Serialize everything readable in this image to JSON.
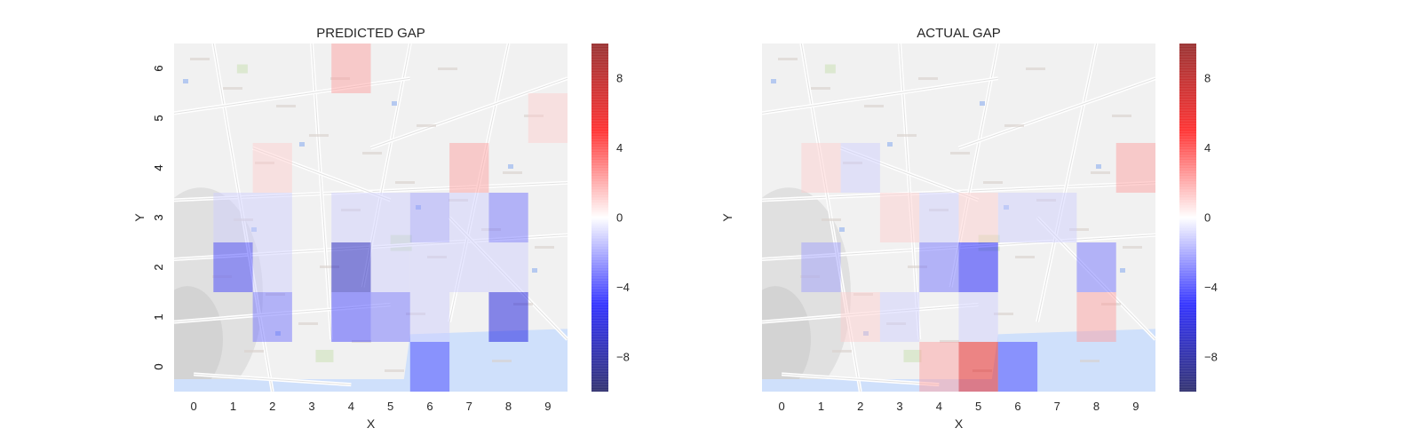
{
  "chart_data": [
    {
      "type": "heatmap",
      "title": "PREDICTED GAP",
      "xlabel": "X",
      "ylabel": "Y",
      "x_ticks": [
        "0",
        "1",
        "2",
        "3",
        "4",
        "5",
        "6",
        "7",
        "8",
        "9"
      ],
      "y_ticks": [
        "0",
        "1",
        "2",
        "3",
        "4",
        "5",
        "6"
      ],
      "colorbar_ticks": [
        "8",
        "4",
        "0",
        "−4",
        "−8"
      ],
      "colorbar_values": [
        8,
        4,
        0,
        -4,
        -8
      ],
      "vrange": [
        -10,
        10
      ],
      "colormap": "seismic",
      "background": "street map",
      "grid": false,
      "values_by_row_y6_to_y0": [
        [
          0,
          0,
          0,
          0,
          2,
          0,
          0,
          0,
          0,
          0
        ],
        [
          0,
          0,
          0,
          0,
          0,
          0,
          0,
          0,
          0,
          1
        ],
        [
          0,
          0,
          1,
          0,
          0,
          0,
          0,
          2,
          0,
          0
        ],
        [
          0,
          -1,
          -1,
          0,
          -1,
          -1,
          -2,
          -1,
          -3,
          0
        ],
        [
          0,
          -4,
          -1,
          0,
          -7,
          -1,
          -1,
          -1,
          -1,
          0
        ],
        [
          0,
          0,
          -3,
          0,
          -4,
          -3,
          -1,
          0,
          -6,
          0
        ],
        [
          0,
          0,
          0,
          0,
          0,
          0,
          -4,
          0,
          0,
          0
        ]
      ]
    },
    {
      "type": "heatmap",
      "title": "ACTUAL GAP",
      "xlabel": "X",
      "ylabel": "Y",
      "x_ticks": [
        "0",
        "1",
        "2",
        "3",
        "4",
        "5",
        "6",
        "7",
        "8",
        "9"
      ],
      "y_ticks": [
        "0",
        "1",
        "2",
        "3",
        "4",
        "5",
        "6"
      ],
      "colorbar_ticks": [
        "8",
        "4",
        "0",
        "−4",
        "−8"
      ],
      "colorbar_values": [
        8,
        4,
        0,
        -4,
        -8
      ],
      "vrange": [
        -10,
        10
      ],
      "colormap": "seismic",
      "background": "street map",
      "grid": false,
      "values_by_row_y6_to_y0": [
        [
          0,
          0,
          0,
          0,
          0,
          0,
          0,
          0,
          0,
          0
        ],
        [
          0,
          0,
          0,
          0,
          0,
          0,
          0,
          0,
          0,
          0
        ],
        [
          0,
          1,
          -1,
          0,
          0,
          0,
          0,
          0,
          0,
          2
        ],
        [
          0,
          0,
          0,
          1,
          -1,
          1,
          -1,
          -1,
          0,
          0
        ],
        [
          0,
          -2,
          0,
          0,
          -3,
          -5,
          0,
          0,
          -3,
          0
        ],
        [
          0,
          0,
          1,
          -1,
          0,
          -1,
          0,
          0,
          2,
          0
        ],
        [
          0,
          0,
          0,
          0,
          2,
          6,
          -4,
          0,
          0,
          0
        ]
      ]
    }
  ]
}
